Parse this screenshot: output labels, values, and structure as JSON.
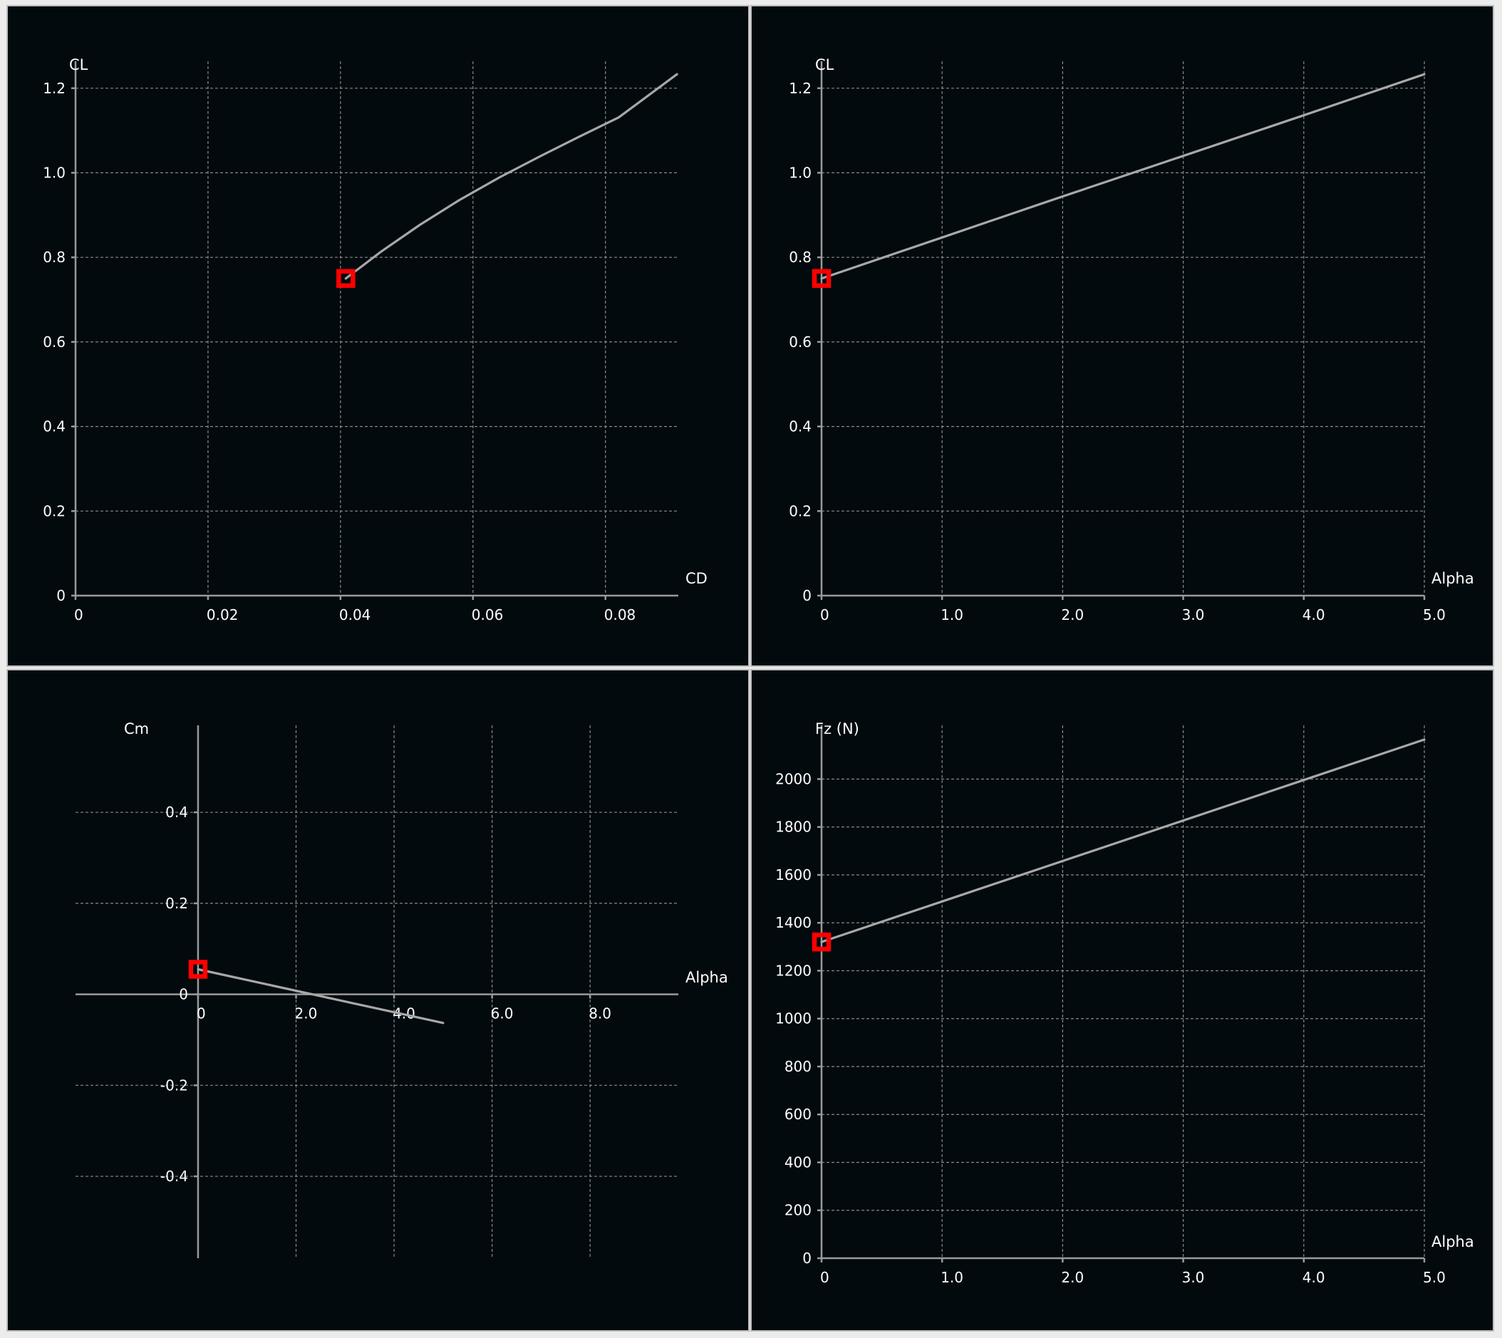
{
  "colors": {
    "background": "#020a0e",
    "frame": "#bdbdbd",
    "grid": "#8a8a8a",
    "axis": "#9a9a9a",
    "curve": "#a8a8a8",
    "operating_point": "#ff0000",
    "text": "#ffffff"
  },
  "chart_data": [
    {
      "type": "line",
      "title": "",
      "xlabel": "CD",
      "ylabel": "CL",
      "xlim": [
        0,
        0.091
      ],
      "ylim": [
        0,
        1.23
      ],
      "x_ticks": [
        0,
        0.02,
        0.04,
        0.06,
        0.08
      ],
      "x_tick_labels": [
        "0",
        "0.02",
        "0.04",
        "0.06",
        "0.08"
      ],
      "y_ticks": [
        0,
        0.2,
        0.4,
        0.6,
        0.8,
        1.0,
        1.2
      ],
      "y_tick_labels": [
        "0",
        "0.2",
        "0.4",
        "0.6",
        "0.8",
        "1.0",
        "1.2"
      ],
      "grid": true,
      "series": [
        {
          "x": [
            0.0408,
            0.046,
            0.052,
            0.058,
            0.064,
            0.07,
            0.076,
            0.082,
            0.0908
          ],
          "y": [
            0.75,
            0.812,
            0.877,
            0.936,
            0.989,
            1.038,
            1.085,
            1.131,
            1.233
          ]
        }
      ],
      "operating_point": {
        "x": 0.0408,
        "y": 0.75
      }
    },
    {
      "type": "line",
      "title": "",
      "xlabel": "Alpha",
      "ylabel": "CL",
      "xlim": [
        0,
        5.0
      ],
      "ylim": [
        0,
        1.23
      ],
      "x_ticks": [
        0,
        1,
        2,
        3,
        4,
        5
      ],
      "x_tick_labels": [
        "0",
        "1.0",
        "2.0",
        "3.0",
        "4.0",
        "5.0"
      ],
      "y_ticks": [
        0,
        0.2,
        0.4,
        0.6,
        0.8,
        1.0,
        1.2
      ],
      "y_tick_labels": [
        "0",
        "0.2",
        "0.4",
        "0.6",
        "0.8",
        "1.0",
        "1.2"
      ],
      "grid": true,
      "series": [
        {
          "x": [
            0,
            1,
            2,
            3,
            4,
            5
          ],
          "y": [
            0.75,
            0.847,
            0.944,
            1.04,
            1.136,
            1.233
          ]
        }
      ],
      "operating_point": {
        "x": 0,
        "y": 0.75
      }
    },
    {
      "type": "line",
      "title": "",
      "xlabel": "Alpha",
      "ylabel": "Cm",
      "xlim": [
        -2.5,
        9.8
      ],
      "ylim": [
        -0.58,
        0.56
      ],
      "x_ticks": [
        0,
        2,
        4,
        6,
        8
      ],
      "x_tick_labels": [
        "0",
        "2.0",
        "4.0",
        "6.0",
        "8.0"
      ],
      "y_ticks": [
        -0.4,
        -0.2,
        0,
        0.2,
        0.4
      ],
      "y_tick_labels": [
        "-0.4",
        "-0.2",
        "0",
        "0.2",
        "0.4"
      ],
      "grid": true,
      "series": [
        {
          "x": [
            0,
            5.0
          ],
          "y": [
            0.055,
            -0.063
          ]
        }
      ],
      "operating_point": {
        "x": 0,
        "y": 0.055
      }
    },
    {
      "type": "line",
      "title": "",
      "xlabel": "Alpha",
      "ylabel": "Fz (N)",
      "xlim": [
        0,
        5.0
      ],
      "ylim": [
        0,
        2165
      ],
      "x_ticks": [
        0,
        1,
        2,
        3,
        4,
        5
      ],
      "x_tick_labels": [
        "0",
        "1.0",
        "2.0",
        "3.0",
        "4.0",
        "5.0"
      ],
      "y_ticks": [
        0,
        200,
        400,
        600,
        800,
        1000,
        1200,
        1400,
        1600,
        1800,
        2000
      ],
      "y_tick_labels": [
        "0",
        "200",
        "400",
        "600",
        "800",
        "1000",
        "1200",
        "1400",
        "1600",
        "1800",
        "2000"
      ],
      "grid": true,
      "series": [
        {
          "x": [
            0,
            1,
            2,
            3,
            4,
            5
          ],
          "y": [
            1320,
            1489,
            1658,
            1827,
            1996,
            2165
          ]
        }
      ],
      "operating_point": {
        "x": 0,
        "y": 1320
      }
    }
  ]
}
